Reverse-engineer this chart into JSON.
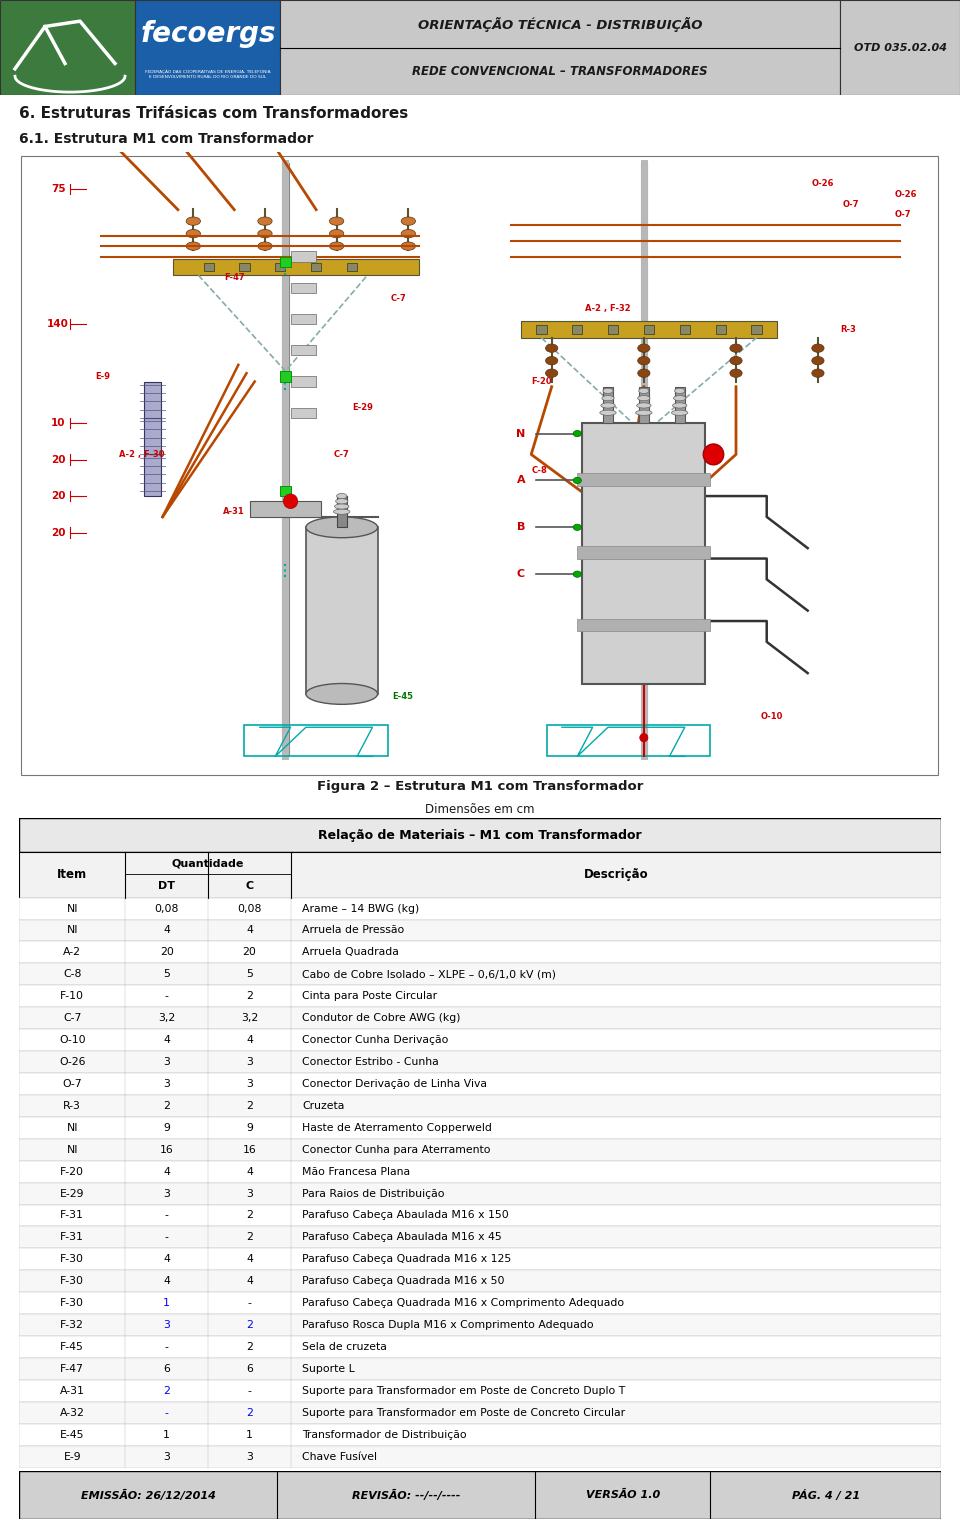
{
  "title_main": "ORIENTAÇÃO TÉCNICA - DISTRIBUIÇÃO",
  "title_sub": "REDE CONVENCIONAL – TRANSFORMADORES",
  "otd_code": "OTD 035.02.04",
  "section_title": "6. Estruturas Trifásicas com Transformadores",
  "section_subtitle": "6.1. Estrutura M1 com Transformador",
  "figure_caption": "Figura 2 – Estrutura M1 com Transformador",
  "figure_caption2": "Dimensões em cm",
  "table_title": "Relação de Materiais – M1 com Transformador",
  "col_headers": [
    "Item",
    "DT",
    "C",
    "Descrição"
  ],
  "rows": [
    [
      "NI",
      "0,08",
      "0,08",
      "Arame – 14 BWG (kg)"
    ],
    [
      "NI",
      "4",
      "4",
      "Arruela de Pressão"
    ],
    [
      "A-2",
      "20",
      "20",
      "Arruela Quadrada"
    ],
    [
      "C-8",
      "5",
      "5",
      "Cabo de Cobre Isolado – XLPE – 0,6/1,0 kV (m)"
    ],
    [
      "F-10",
      "-",
      "2",
      "Cinta para Poste Circular"
    ],
    [
      "C-7",
      "3,2",
      "3,2",
      "Condutor de Cobre AWG (kg)"
    ],
    [
      "O-10",
      "4",
      "4",
      "Conector Cunha Derivação"
    ],
    [
      "O-26",
      "3",
      "3",
      "Conector Estribo - Cunha"
    ],
    [
      "O-7",
      "3",
      "3",
      "Conector Derivação de Linha Viva"
    ],
    [
      "R-3",
      "2",
      "2",
      "Cruzeta"
    ],
    [
      "NI",
      "9",
      "9",
      "Haste de Aterramento Copperweld"
    ],
    [
      "NI",
      "16",
      "16",
      "Conector Cunha para Aterramento"
    ],
    [
      "F-20",
      "4",
      "4",
      "Mão Francesa Plana"
    ],
    [
      "E-29",
      "3",
      "3",
      "Para Raios de Distribuição"
    ],
    [
      "F-31",
      "-",
      "2",
      "Parafuso Cabeça Abaulada M16 x 150"
    ],
    [
      "F-31",
      "-",
      "2",
      "Parafuso Cabeça Abaulada M16 x 45"
    ],
    [
      "F-30",
      "4",
      "4",
      "Parafuso Cabeça Quadrada M16 x 125"
    ],
    [
      "F-30",
      "4",
      "4",
      "Parafuso Cabeça Quadrada M16 x 50"
    ],
    [
      "F-30",
      "1",
      "-",
      "Parafuso Cabeça Quadrada M16 x Comprimento Adequado"
    ],
    [
      "F-32",
      "3",
      "2",
      "Parafuso Rosca Dupla M16 x Comprimento Adequado"
    ],
    [
      "F-45",
      "-",
      "2",
      "Sela de cruzeta"
    ],
    [
      "F-47",
      "6",
      "6",
      "Suporte L"
    ],
    [
      "A-31",
      "2",
      "-",
      "Suporte para Transformador em Poste de Concreto Duplo T"
    ],
    [
      "A-32",
      "-",
      "2",
      "Suporte para Transformador em Poste de Concreto Circular"
    ],
    [
      "E-45",
      "1",
      "1",
      "Transformador de Distribuição"
    ],
    [
      "E-9",
      "3",
      "3",
      "Chave Fusível"
    ]
  ],
  "blue_dt_rows": [
    18,
    19,
    22,
    23
  ],
  "blue_c_rows": [
    19,
    23
  ],
  "footer_emission": "EMISSÃO: 26/12/2014",
  "footer_revision": "REVISÃO: --/--/----",
  "footer_version": "VERSÃO 1.0",
  "footer_page": "PÁG. 4 / 21",
  "logo_green": "#3d7a3d",
  "logo_blue": "#1a5fa8",
  "header_gray": "#c8c8c8",
  "bg_color": "#ffffff",
  "footer_bg": "#d0d0d0",
  "diagram_bg": "#ffffff",
  "wire_orange": "#b84800",
  "wire_dark": "#333333",
  "label_red": "#cc0000",
  "label_green": "#007700",
  "post_color": "#b8b8b8",
  "crossarm_color": "#c8a020",
  "insulator_color": "#8b3500",
  "transformer_color": "#c0c0c0",
  "cyan_color": "#00aaaa"
}
